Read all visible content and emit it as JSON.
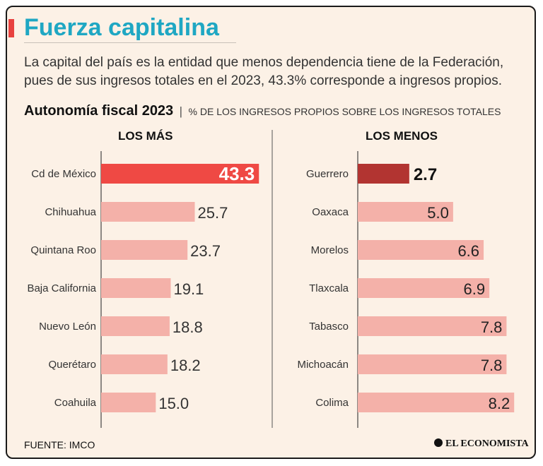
{
  "header": {
    "title": "Fuerza capitalina",
    "subtitle": "La capital del país es la entidad que menos dependencia tiene de la Federación, pues de sus ingresos totales en el 2023, 43.3% corresponde a ingresos propios."
  },
  "colors": {
    "accent": "#e8423f",
    "title": "#1fa7c3",
    "bar_light": "#f4b1a9",
    "bar_top": "#ef4944",
    "bar_bottom": "#b23431"
  },
  "chart_data": [
    {
      "type": "bar",
      "orientation": "horizontal",
      "title": "Autonomía fiscal 2023",
      "separator": "|",
      "subtitle": "% DE LOS INGRESOS PROPIOS SOBRE LOS INGRESOS TOTALES",
      "panel_label": "LOS MÁS",
      "categories": [
        "Cd de México",
        "Chihuahua",
        "Quintana Roo",
        "Baja California",
        "Nuevo León",
        "Querétaro",
        "Coahuila"
      ],
      "values": [
        43.3,
        25.7,
        23.7,
        19.1,
        18.8,
        18.2,
        15.0
      ],
      "labels": [
        "43.3",
        "25.7",
        "23.7",
        "19.1",
        "18.8",
        "18.2",
        "15.0"
      ],
      "xlim": [
        0,
        45
      ]
    },
    {
      "type": "bar",
      "orientation": "horizontal",
      "panel_label": "LOS MENOS",
      "categories": [
        "Guerrero",
        "Oaxaca",
        "Morelos",
        "Tlaxcala",
        "Tabasco",
        "Michoacán",
        "Colima"
      ],
      "values": [
        2.7,
        5.0,
        6.6,
        6.9,
        7.8,
        7.8,
        8.2
      ],
      "labels": [
        "2.7",
        "5.0",
        "6.6",
        "6.9",
        "7.8",
        "7.8",
        "8.2"
      ],
      "xlim": [
        0,
        8.6
      ]
    }
  ],
  "footer": {
    "source": "FUENTE: IMCO",
    "brand": "EL ECONOMISTA"
  }
}
